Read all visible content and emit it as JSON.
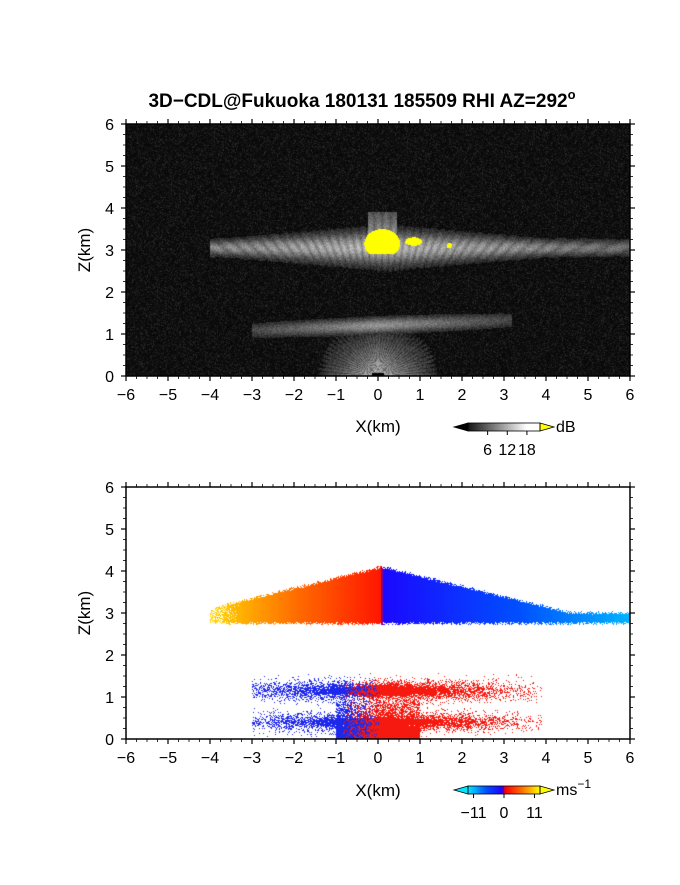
{
  "chart_data": [
    {
      "type": "heatmap",
      "title": "3D−CDL@Fukuoka 180131 185509 RHI AZ=292",
      "title_superscript": "o",
      "xlabel": "X(km)",
      "ylabel": "Z(km)",
      "xlim": [
        -6,
        6
      ],
      "ylim": [
        0,
        6
      ],
      "xticks": [
        "−6",
        "−5",
        "−4",
        "−3",
        "−2",
        "−1",
        "0",
        "1",
        "2",
        "3",
        "4",
        "5",
        "6"
      ],
      "yticks": [
        "0",
        "1",
        "2",
        "3",
        "4",
        "5",
        "6"
      ],
      "colorbar": {
        "unit": "dB",
        "unit_superscript": "",
        "ticks": [
          "6",
          "12",
          "18"
        ],
        "tick_values": [
          6,
          12,
          18
        ],
        "range": [
          0,
          22
        ]
      },
      "background": "#050505",
      "layers": [
        {
          "x_range": [
            -4.0,
            6.0
          ],
          "z_center": 3.05,
          "thickness": 0.55,
          "peak_x": 0.1,
          "peak_z": 3.9,
          "level_db": 12
        },
        {
          "x_range": [
            -3.0,
            3.2
          ],
          "z_center": 1.2,
          "thickness": 0.4,
          "level_db": 10
        }
      ],
      "saturated_region": {
        "x_range": [
          -0.7,
          1.8
        ],
        "z_range": [
          2.9,
          3.9
        ],
        "color": "#ffff00"
      }
    },
    {
      "type": "heatmap",
      "title": "",
      "xlabel": "X(km)",
      "ylabel": "Z(km)",
      "xlim": [
        -6,
        6
      ],
      "ylim": [
        0,
        6
      ],
      "xticks": [
        "−6",
        "−5",
        "−4",
        "−3",
        "−2",
        "−1",
        "0",
        "1",
        "2",
        "3",
        "4",
        "5",
        "6"
      ],
      "yticks": [
        "0",
        "1",
        "2",
        "3",
        "4",
        "5",
        "6"
      ],
      "colorbar": {
        "unit": "ms",
        "unit_superscript": "−1",
        "ticks": [
          "−11",
          "0",
          "11"
        ],
        "tick_values": [
          -11,
          0,
          11
        ],
        "range": [
          -13,
          13
        ]
      },
      "background": "#ffffff",
      "layers": [
        {
          "x_range": [
            -4.0,
            6.0
          ],
          "z_bottom": 2.75,
          "z_top_at_center": 4.1,
          "z_top_at_edges": 3.0,
          "velocity_at_left_edge": 11,
          "velocity_at_right_edge": -11,
          "velocity_sign_change_x": 0.1
        },
        {
          "x_range": [
            -3.0,
            3.9
          ],
          "z_range": [
            0.0,
            1.6
          ],
          "velocity_left": -9,
          "velocity_right": 5,
          "velocity_sign_change_x": -0.4
        }
      ]
    }
  ]
}
